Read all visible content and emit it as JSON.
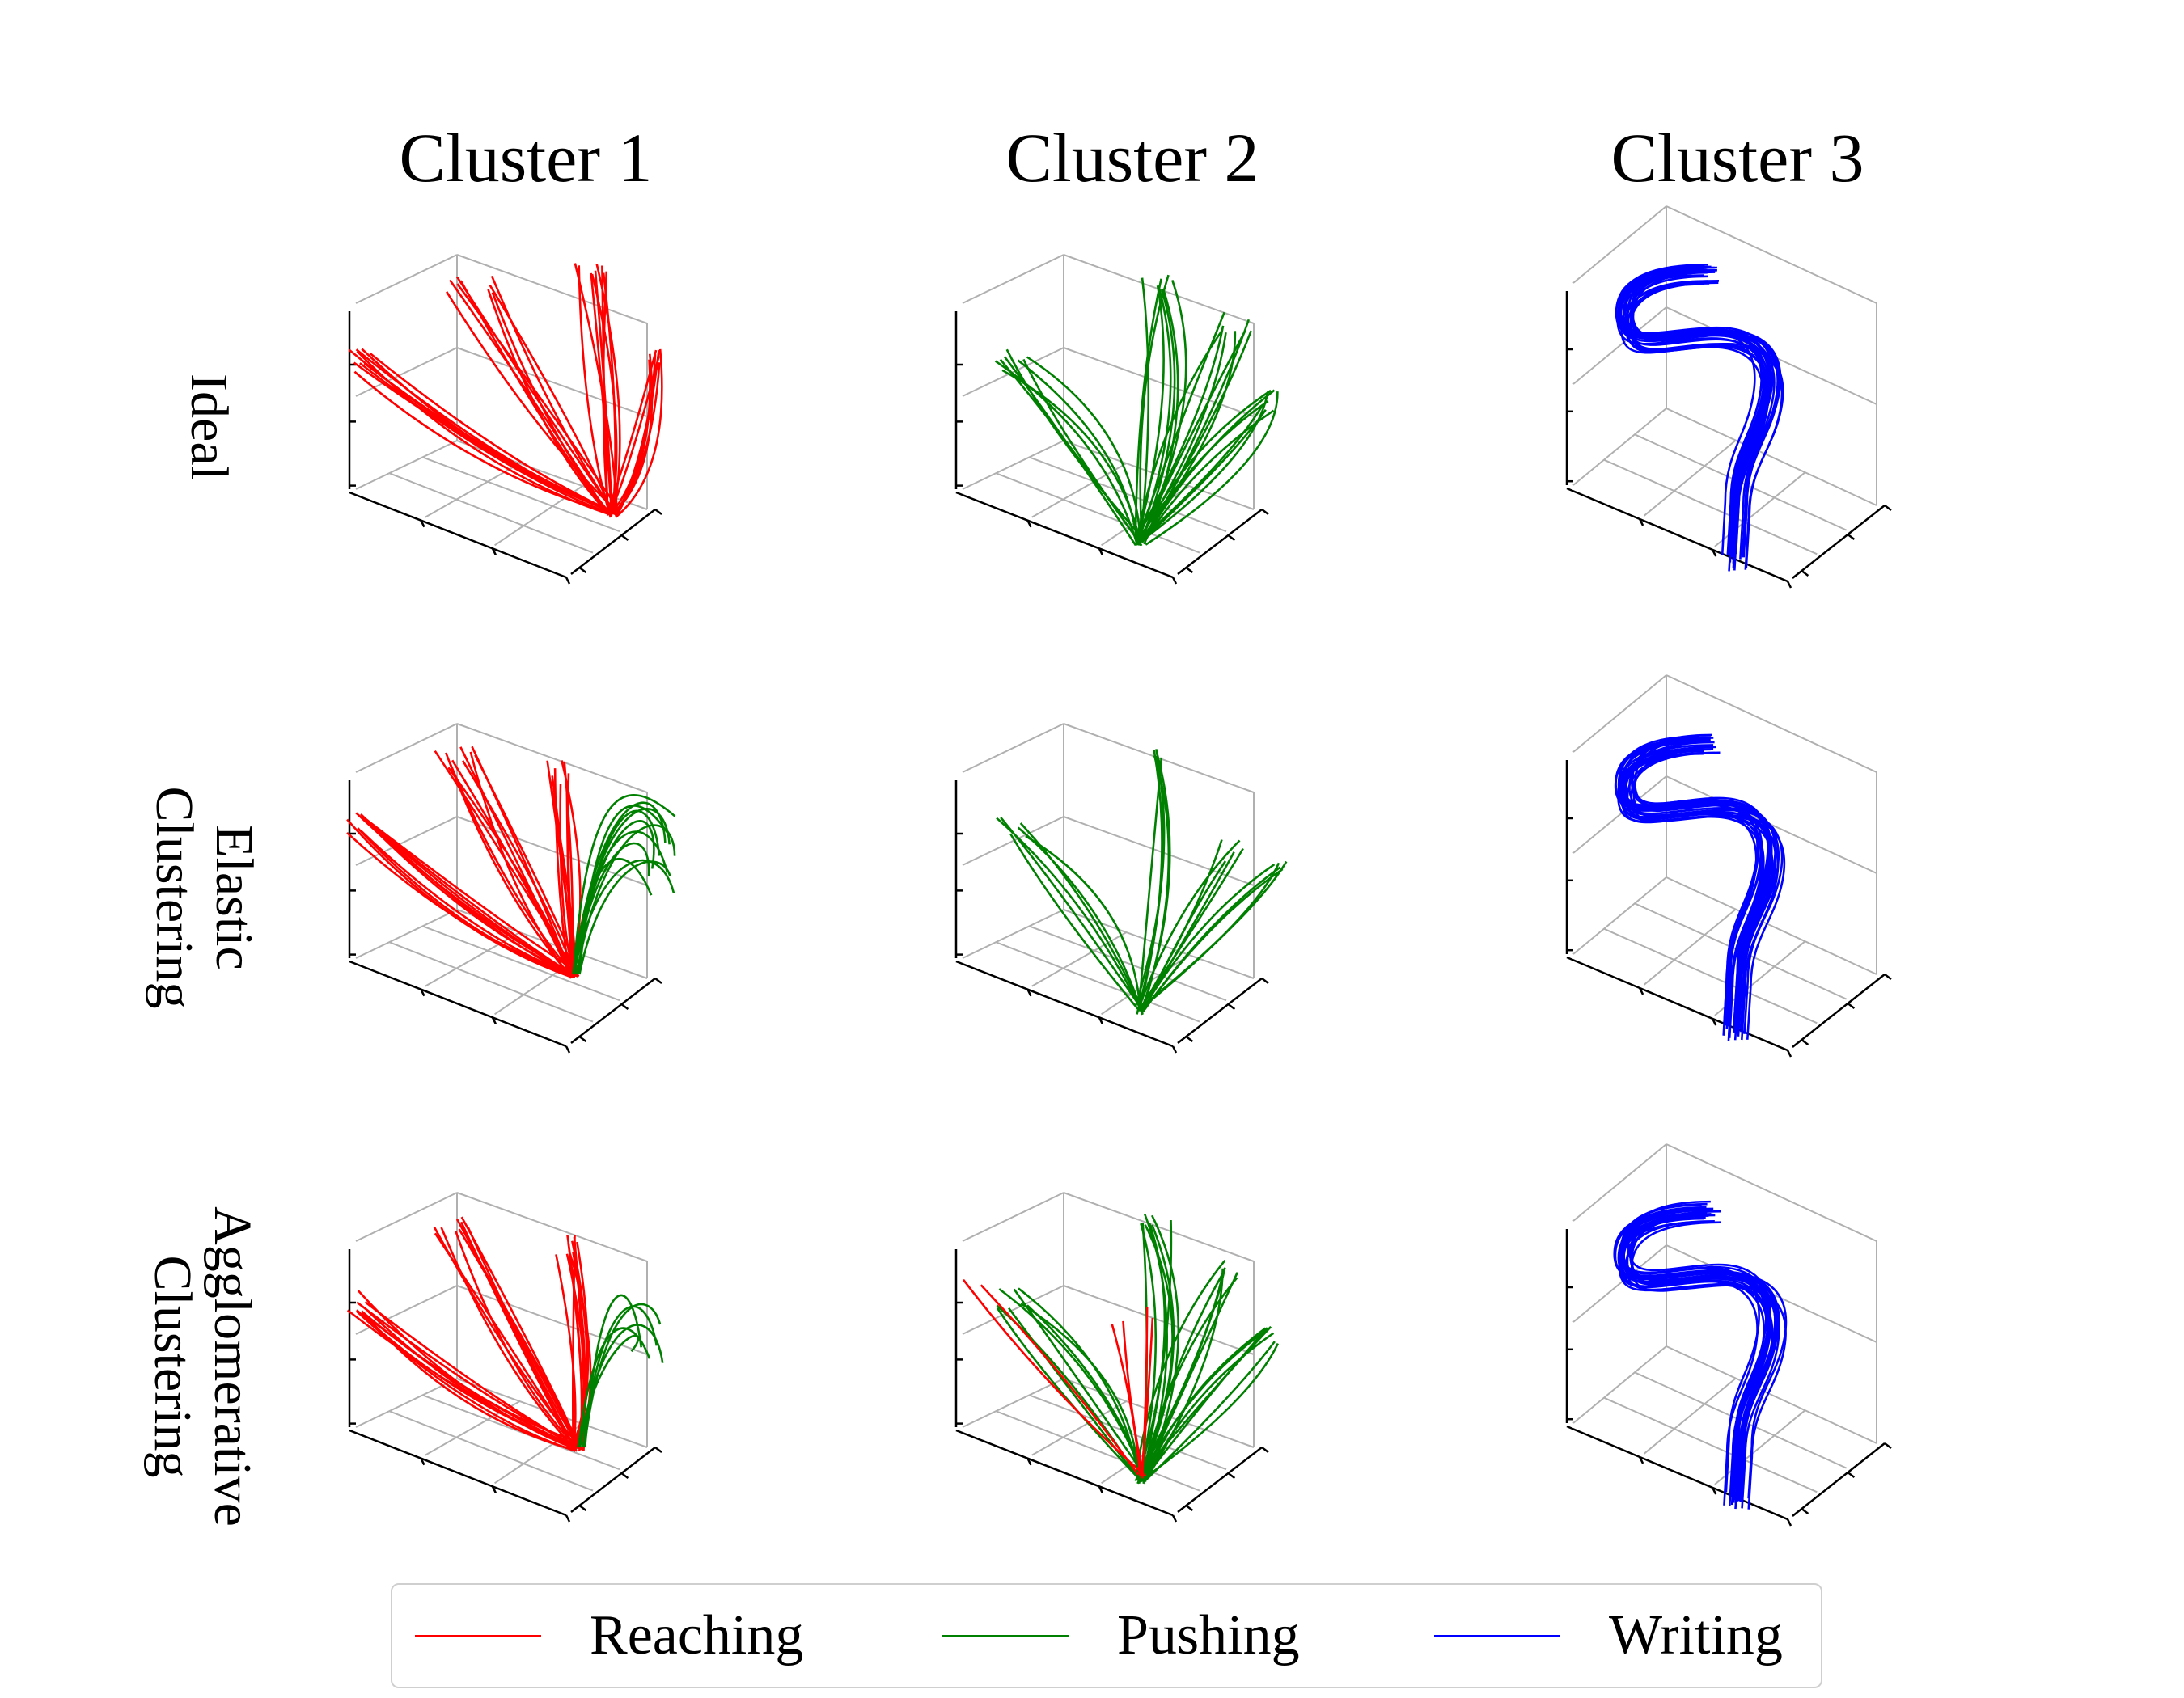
{
  "columns": [
    "Cluster 1",
    "Cluster 2",
    "Cluster 3"
  ],
  "rows": [
    {
      "lines": [
        "Ideal"
      ]
    },
    {
      "lines": [
        "Elastic",
        "Clustering"
      ]
    },
    {
      "lines": [
        "Agglomerative",
        "Clustering"
      ]
    }
  ],
  "legend": [
    {
      "label": "Reaching",
      "color": "#ff0000"
    },
    {
      "label": "Pushing",
      "color": "#008000"
    },
    {
      "label": "Writing",
      "color": "#0000ff"
    }
  ],
  "chart_data": {
    "type": "line",
    "subtype": "3d-trajectory-grid",
    "grid": "on",
    "legend_position": "bottom",
    "panels": [
      {
        "row": "Ideal",
        "column": "Cluster 1",
        "series": [
          {
            "class": "Reaching",
            "color": "#ff0000",
            "count": 36
          }
        ]
      },
      {
        "row": "Ideal",
        "column": "Cluster 2",
        "series": [
          {
            "class": "Pushing",
            "color": "#008000",
            "count": 32
          }
        ]
      },
      {
        "row": "Ideal",
        "column": "Cluster 3",
        "series": [
          {
            "class": "Writing",
            "color": "#0000ff",
            "count": 24
          }
        ]
      },
      {
        "row": "Elastic Clustering",
        "column": "Cluster 1",
        "series": [
          {
            "class": "Reaching",
            "color": "#ff0000",
            "count": 30
          },
          {
            "class": "Pushing",
            "color": "#008000",
            "count": 12
          }
        ]
      },
      {
        "row": "Elastic Clustering",
        "column": "Cluster 2",
        "series": [
          {
            "class": "Pushing",
            "color": "#008000",
            "count": 22
          }
        ]
      },
      {
        "row": "Elastic Clustering",
        "column": "Cluster 3",
        "series": [
          {
            "class": "Writing",
            "color": "#0000ff",
            "count": 24
          }
        ]
      },
      {
        "row": "Agglomerative Clustering",
        "column": "Cluster 1",
        "series": [
          {
            "class": "Reaching",
            "color": "#ff0000",
            "count": 30
          },
          {
            "class": "Pushing",
            "color": "#008000",
            "count": 6
          }
        ]
      },
      {
        "row": "Agglomerative Clustering",
        "column": "Cluster 2",
        "series": [
          {
            "class": "Pushing",
            "color": "#008000",
            "count": 30
          },
          {
            "class": "Reaching",
            "color": "#ff0000",
            "count": 6
          }
        ]
      },
      {
        "row": "Agglomerative Clustering",
        "column": "Cluster 3",
        "series": [
          {
            "class": "Writing",
            "color": "#0000ff",
            "count": 24
          }
        ]
      }
    ]
  }
}
